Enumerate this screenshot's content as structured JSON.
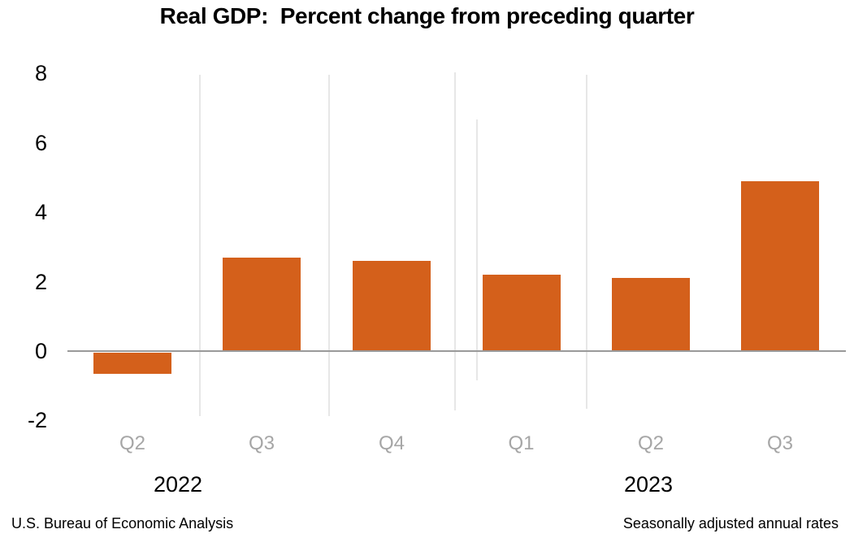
{
  "chart_data": {
    "type": "bar",
    "title": "Real GDP:  Percent change from preceding quarter",
    "categories": [
      "Q2",
      "Q3",
      "Q4",
      "Q1",
      "Q2",
      "Q3"
    ],
    "values": [
      -0.6,
      2.7,
      2.6,
      2.2,
      2.1,
      4.9
    ],
    "years": [
      {
        "label": "2022",
        "category_indexes": [
          0,
          1,
          2
        ]
      },
      {
        "label": "2023",
        "category_indexes": [
          3,
          4,
          5
        ]
      }
    ],
    "yticks": [
      8,
      6,
      4,
      2,
      0,
      -2
    ],
    "ylim": [
      -2,
      8
    ],
    "xlabel": "",
    "ylabel": "",
    "grid": {
      "horizontal": false,
      "vertical_quarter_separators": true
    },
    "legend": "none"
  },
  "footer": {
    "left": "U.S. Bureau of Economic Analysis",
    "right": "Seasonally adjusted annual rates"
  },
  "colors": {
    "bar": "#d4601b",
    "zero_line": "#9a9a9a",
    "separator_line": "#e7e7e7",
    "quarter_label": "#a6a6a6",
    "year_label": "#000000",
    "text": "#000000"
  }
}
